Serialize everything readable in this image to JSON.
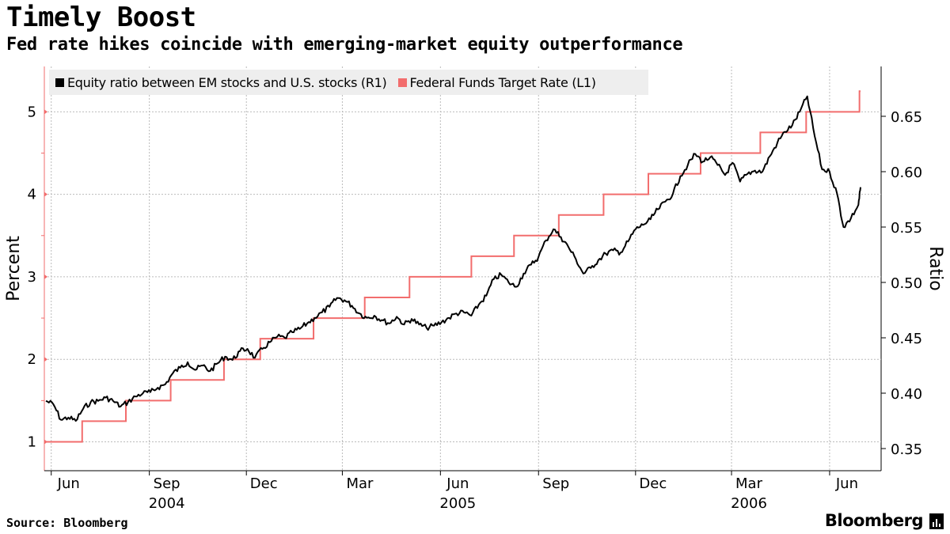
{
  "header": {
    "title": "Timely Boost",
    "subtitle": "Fed rate hikes coincide with emerging-market equity outperformance"
  },
  "footer": {
    "source": "Source: Bloomberg",
    "brand": "Bloomberg"
  },
  "chart_data": {
    "type": "line",
    "title": "Timely Boost",
    "subtitle": "Fed rate hikes coincide with emerging-market equity outperformance",
    "ylabel_left": "Percent",
    "ylabel_right": "Ratio",
    "ylim_left": [
      0.65,
      5.55
    ],
    "ylim_right": [
      0.33,
      0.695
    ],
    "yticks_left": [
      "1",
      "2",
      "3",
      "4",
      "5"
    ],
    "yticks_right": [
      "0.35",
      "0.40",
      "0.45",
      "0.50",
      "0.55",
      "0.60",
      "0.65"
    ],
    "x_range": [
      "2004-05-27",
      "2006-06-30"
    ],
    "x_month_ticks": [
      "Jun",
      "Sep",
      "Dec",
      "Mar",
      "Jun",
      "Sep",
      "Dec",
      "Mar",
      "Jun"
    ],
    "x_year_labels": [
      "2004",
      "2005",
      "2006"
    ],
    "grid": true,
    "legend_position": "top-left",
    "series": [
      {
        "name": "Equity ratio between EM stocks and U.S. stocks (R1)",
        "axis": "right",
        "color": "#000000",
        "points": [
          [
            "2004-05-27",
            0.393
          ],
          [
            "2004-06-03",
            0.39
          ],
          [
            "2004-06-10",
            0.376
          ],
          [
            "2004-06-17",
            0.378
          ],
          [
            "2004-06-24",
            0.375
          ],
          [
            "2004-07-01",
            0.386
          ],
          [
            "2004-07-08",
            0.392
          ],
          [
            "2004-07-15",
            0.393
          ],
          [
            "2004-07-22",
            0.396
          ],
          [
            "2004-07-29",
            0.393
          ],
          [
            "2004-08-05",
            0.388
          ],
          [
            "2004-08-12",
            0.392
          ],
          [
            "2004-08-19",
            0.397
          ],
          [
            "2004-08-26",
            0.4
          ],
          [
            "2004-09-02",
            0.401
          ],
          [
            "2004-09-09",
            0.405
          ],
          [
            "2004-09-16",
            0.408
          ],
          [
            "2004-09-23",
            0.418
          ],
          [
            "2004-09-30",
            0.423
          ],
          [
            "2004-10-07",
            0.428
          ],
          [
            "2004-10-14",
            0.421
          ],
          [
            "2004-10-21",
            0.425
          ],
          [
            "2004-10-28",
            0.42
          ],
          [
            "2004-11-04",
            0.427
          ],
          [
            "2004-11-11",
            0.433
          ],
          [
            "2004-11-18",
            0.43
          ],
          [
            "2004-11-25",
            0.438
          ],
          [
            "2004-12-02",
            0.44
          ],
          [
            "2004-12-09",
            0.432
          ],
          [
            "2004-12-16",
            0.44
          ],
          [
            "2004-12-23",
            0.446
          ],
          [
            "2004-12-30",
            0.451
          ],
          [
            "2005-01-06",
            0.45
          ],
          [
            "2005-01-13",
            0.455
          ],
          [
            "2005-01-20",
            0.458
          ],
          [
            "2005-01-27",
            0.463
          ],
          [
            "2005-02-03",
            0.468
          ],
          [
            "2005-02-10",
            0.473
          ],
          [
            "2005-02-17",
            0.478
          ],
          [
            "2005-02-24",
            0.486
          ],
          [
            "2005-03-03",
            0.484
          ],
          [
            "2005-03-10",
            0.479
          ],
          [
            "2005-03-17",
            0.472
          ],
          [
            "2005-03-24",
            0.468
          ],
          [
            "2005-03-31",
            0.47
          ],
          [
            "2005-04-07",
            0.466
          ],
          [
            "2005-04-14",
            0.463
          ],
          [
            "2005-04-21",
            0.469
          ],
          [
            "2005-04-28",
            0.462
          ],
          [
            "2005-05-05",
            0.467
          ],
          [
            "2005-05-12",
            0.462
          ],
          [
            "2005-05-19",
            0.459
          ],
          [
            "2005-05-26",
            0.461
          ],
          [
            "2005-06-02",
            0.464
          ],
          [
            "2005-06-09",
            0.468
          ],
          [
            "2005-06-16",
            0.472
          ],
          [
            "2005-06-23",
            0.473
          ],
          [
            "2005-06-30",
            0.47
          ],
          [
            "2005-07-07",
            0.48
          ],
          [
            "2005-07-14",
            0.488
          ],
          [
            "2005-07-21",
            0.503
          ],
          [
            "2005-07-28",
            0.507
          ],
          [
            "2005-08-04",
            0.5
          ],
          [
            "2005-08-11",
            0.496
          ],
          [
            "2005-08-18",
            0.508
          ],
          [
            "2005-08-25",
            0.516
          ],
          [
            "2005-09-01",
            0.523
          ],
          [
            "2005-09-08",
            0.538
          ],
          [
            "2005-09-15",
            0.548
          ],
          [
            "2005-09-22",
            0.541
          ],
          [
            "2005-09-29",
            0.532
          ],
          [
            "2005-10-06",
            0.521
          ],
          [
            "2005-10-13",
            0.508
          ],
          [
            "2005-10-20",
            0.513
          ],
          [
            "2005-10-27",
            0.52
          ],
          [
            "2005-11-03",
            0.526
          ],
          [
            "2005-11-10",
            0.529
          ],
          [
            "2005-11-17",
            0.527
          ],
          [
            "2005-11-24",
            0.537
          ],
          [
            "2005-12-01",
            0.548
          ],
          [
            "2005-12-08",
            0.552
          ],
          [
            "2005-12-15",
            0.557
          ],
          [
            "2005-12-22",
            0.566
          ],
          [
            "2005-12-29",
            0.573
          ],
          [
            "2006-01-05",
            0.58
          ],
          [
            "2006-01-12",
            0.596
          ],
          [
            "2006-01-19",
            0.606
          ],
          [
            "2006-01-26",
            0.616
          ],
          [
            "2006-02-02",
            0.609
          ],
          [
            "2006-02-09",
            0.613
          ],
          [
            "2006-02-16",
            0.606
          ],
          [
            "2006-02-23",
            0.597
          ],
          [
            "2006-03-02",
            0.608
          ],
          [
            "2006-03-09",
            0.591
          ],
          [
            "2006-03-16",
            0.598
          ],
          [
            "2006-03-23",
            0.601
          ],
          [
            "2006-03-30",
            0.6
          ],
          [
            "2006-04-06",
            0.614
          ],
          [
            "2006-04-13",
            0.626
          ],
          [
            "2006-04-20",
            0.636
          ],
          [
            "2006-04-27",
            0.642
          ],
          [
            "2006-05-04",
            0.654
          ],
          [
            "2006-05-11",
            0.668
          ],
          [
            "2006-05-18",
            0.632
          ],
          [
            "2006-05-25",
            0.602
          ],
          [
            "2006-06-01",
            0.6
          ],
          [
            "2006-06-08",
            0.58
          ],
          [
            "2006-06-14",
            0.55
          ],
          [
            "2006-06-21",
            0.558
          ],
          [
            "2006-06-28",
            0.57
          ],
          [
            "2006-06-30",
            0.586
          ]
        ]
      },
      {
        "name": "Federal Funds Target Rate (L1)",
        "axis": "left",
        "color": "#f26d6d",
        "step_changes": [
          [
            "2004-05-27",
            1.0
          ],
          [
            "2004-06-30",
            1.25
          ],
          [
            "2004-08-10",
            1.5
          ],
          [
            "2004-09-21",
            1.75
          ],
          [
            "2004-11-10",
            2.0
          ],
          [
            "2004-12-14",
            2.25
          ],
          [
            "2005-02-02",
            2.5
          ],
          [
            "2005-03-22",
            2.75
          ],
          [
            "2005-05-03",
            3.0
          ],
          [
            "2005-06-30",
            3.25
          ],
          [
            "2005-08-09",
            3.5
          ],
          [
            "2005-09-20",
            3.75
          ],
          [
            "2005-11-01",
            4.0
          ],
          [
            "2005-12-13",
            4.25
          ],
          [
            "2006-01-31",
            4.5
          ],
          [
            "2006-03-28",
            4.75
          ],
          [
            "2006-05-10",
            5.0
          ],
          [
            "2006-06-29",
            5.25
          ]
        ],
        "end_date": "2006-06-30"
      }
    ]
  }
}
